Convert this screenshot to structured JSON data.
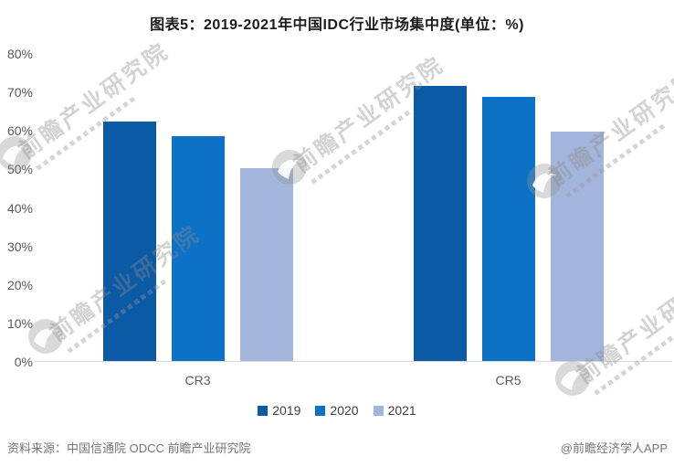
{
  "title": "图表5：2019-2021年中国IDC行业市场集中度(单位：%)",
  "chart_data": {
    "type": "bar",
    "categories": [
      "CR3",
      "CR5"
    ],
    "series": [
      {
        "name": "2019",
        "color": "#0b5aa5",
        "values": [
          62.3,
          71.5
        ]
      },
      {
        "name": "2020",
        "color": "#0d72c6",
        "values": [
          58.4,
          68.5
        ]
      },
      {
        "name": "2021",
        "color": "#a4b5db",
        "values": [
          50.0,
          59.6
        ]
      }
    ],
    "title": "图表5：2019-2021年中国IDC行业市场集中度(单位：%)",
    "xlabel": "",
    "ylabel": "",
    "ylim": [
      0,
      80
    ],
    "ytick_labels": [
      "0%",
      "10%",
      "20%",
      "30%",
      "40%",
      "50%",
      "60%",
      "70%",
      "80%"
    ],
    "grid": false,
    "legend_position": "bottom"
  },
  "watermark": {
    "text": "前瞻产业研究院"
  },
  "footer": {
    "source": "资料来源：中国信通院 ODCC 前瞻产业研究院",
    "credit": "@前瞻经济学人APP"
  }
}
